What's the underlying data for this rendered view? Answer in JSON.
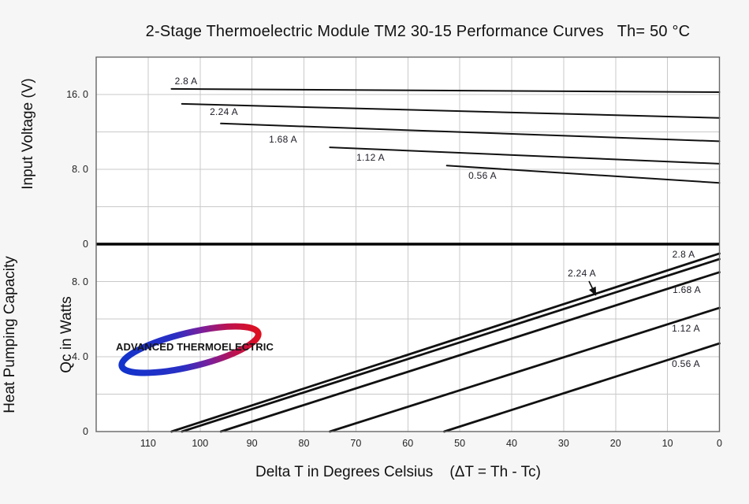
{
  "title": "2-Stage Thermoelectric Module TM2 30-15 Performance Curves   Th= 50 °C",
  "axes": {
    "x": {
      "title": "Delta T in Degrees Celsius    (ΔT = Th - Tc)",
      "min": 0,
      "max": 120,
      "reversed": true,
      "grid_step": 10,
      "ticks": [
        {
          "value": 110,
          "label": "110"
        },
        {
          "value": 100,
          "label": "100"
        },
        {
          "value": 90,
          "label": "90"
        },
        {
          "value": 80,
          "label": "80"
        },
        {
          "value": 70,
          "label": "70"
        },
        {
          "value": 60,
          "label": "60"
        },
        {
          "value": 50,
          "label": "50"
        },
        {
          "value": 40,
          "label": "40"
        },
        {
          "value": 30,
          "label": "30"
        },
        {
          "value": 20,
          "label": "20"
        },
        {
          "value": 10,
          "label": "10"
        },
        {
          "value": 0,
          "label": "0"
        }
      ]
    },
    "y_top": {
      "title": "Input Voltage (V)",
      "min": 0,
      "max": 20,
      "grid_step": 4,
      "ticks": [
        {
          "value": 16,
          "label": "16. 0"
        },
        {
          "value": 8,
          "label": "8. 0"
        },
        {
          "value": 0,
          "label": "0"
        }
      ]
    },
    "y_bottom": {
      "title_line1": "Heat Pumping Capacity",
      "title_line2": "Qc in Watts",
      "min": 0,
      "max": 10,
      "grid_step": 2,
      "ticks": [
        {
          "value": 8,
          "label": "8. 0"
        },
        {
          "value": 4,
          "label": "4. 0"
        },
        {
          "value": 0,
          "label": "0"
        }
      ]
    }
  },
  "chart_data": [
    {
      "type": "line",
      "name": "input-voltage-vs-delta-t",
      "title": "Input Voltage (V) vs Delta T",
      "xlabel": "Delta T in Degrees Celsius",
      "ylabel": "Input Voltage (V)",
      "xlim": [
        120,
        0
      ],
      "x_reversed": true,
      "ylim": [
        0,
        20
      ],
      "grid": true,
      "series": [
        {
          "name": "2.8 A",
          "points": [
            [
              105.5,
              16.6
            ],
            [
              0,
              16.25
            ]
          ]
        },
        {
          "name": "2.24 A",
          "points": [
            [
              103.5,
              15.0
            ],
            [
              0,
              13.5
            ]
          ]
        },
        {
          "name": "1.68 A",
          "points": [
            [
              96.0,
              12.9
            ],
            [
              0,
              11.0
            ]
          ]
        },
        {
          "name": "1.12 A",
          "points": [
            [
              75.0,
              10.35
            ],
            [
              0,
              8.6
            ]
          ]
        },
        {
          "name": "0.56 A",
          "points": [
            [
              52.5,
              8.4
            ],
            [
              0,
              6.55
            ]
          ]
        }
      ]
    },
    {
      "type": "line",
      "name": "heat-pumping-capacity-vs-delta-t",
      "title": "Heat Pumping Capacity Qc vs Delta T",
      "xlabel": "Delta T in Degrees Celsius",
      "ylabel": "Heat Pumping Capacity Qc in Watts",
      "xlim": [
        120,
        0
      ],
      "x_reversed": true,
      "ylim": [
        0,
        10
      ],
      "grid": true,
      "series": [
        {
          "name": "2.8 A",
          "points": [
            [
              105.5,
              0
            ],
            [
              0,
              9.5
            ]
          ]
        },
        {
          "name": "2.24 A",
          "points": [
            [
              103.5,
              0
            ],
            [
              0,
              9.2
            ]
          ]
        },
        {
          "name": "1.68 A",
          "points": [
            [
              96.0,
              0
            ],
            [
              0,
              8.5
            ]
          ]
        },
        {
          "name": "1.12 A",
          "points": [
            [
              75.0,
              0
            ],
            [
              0,
              6.6
            ]
          ]
        },
        {
          "name": "0.56 A",
          "points": [
            [
              53.0,
              0
            ],
            [
              0,
              4.7
            ]
          ]
        }
      ]
    }
  ],
  "logo": {
    "text": "ADVANCED THERMOELECTRIC",
    "blue": "#1233cc",
    "red": "#dd1020"
  },
  "colors": {
    "background": "#f6f6f6",
    "plot_background": "#ffffff",
    "gridline": "#c9c9c9",
    "plot_border": "#666666",
    "curve": "#111111",
    "separator": "#000000",
    "label_text": "#1c1c26"
  }
}
